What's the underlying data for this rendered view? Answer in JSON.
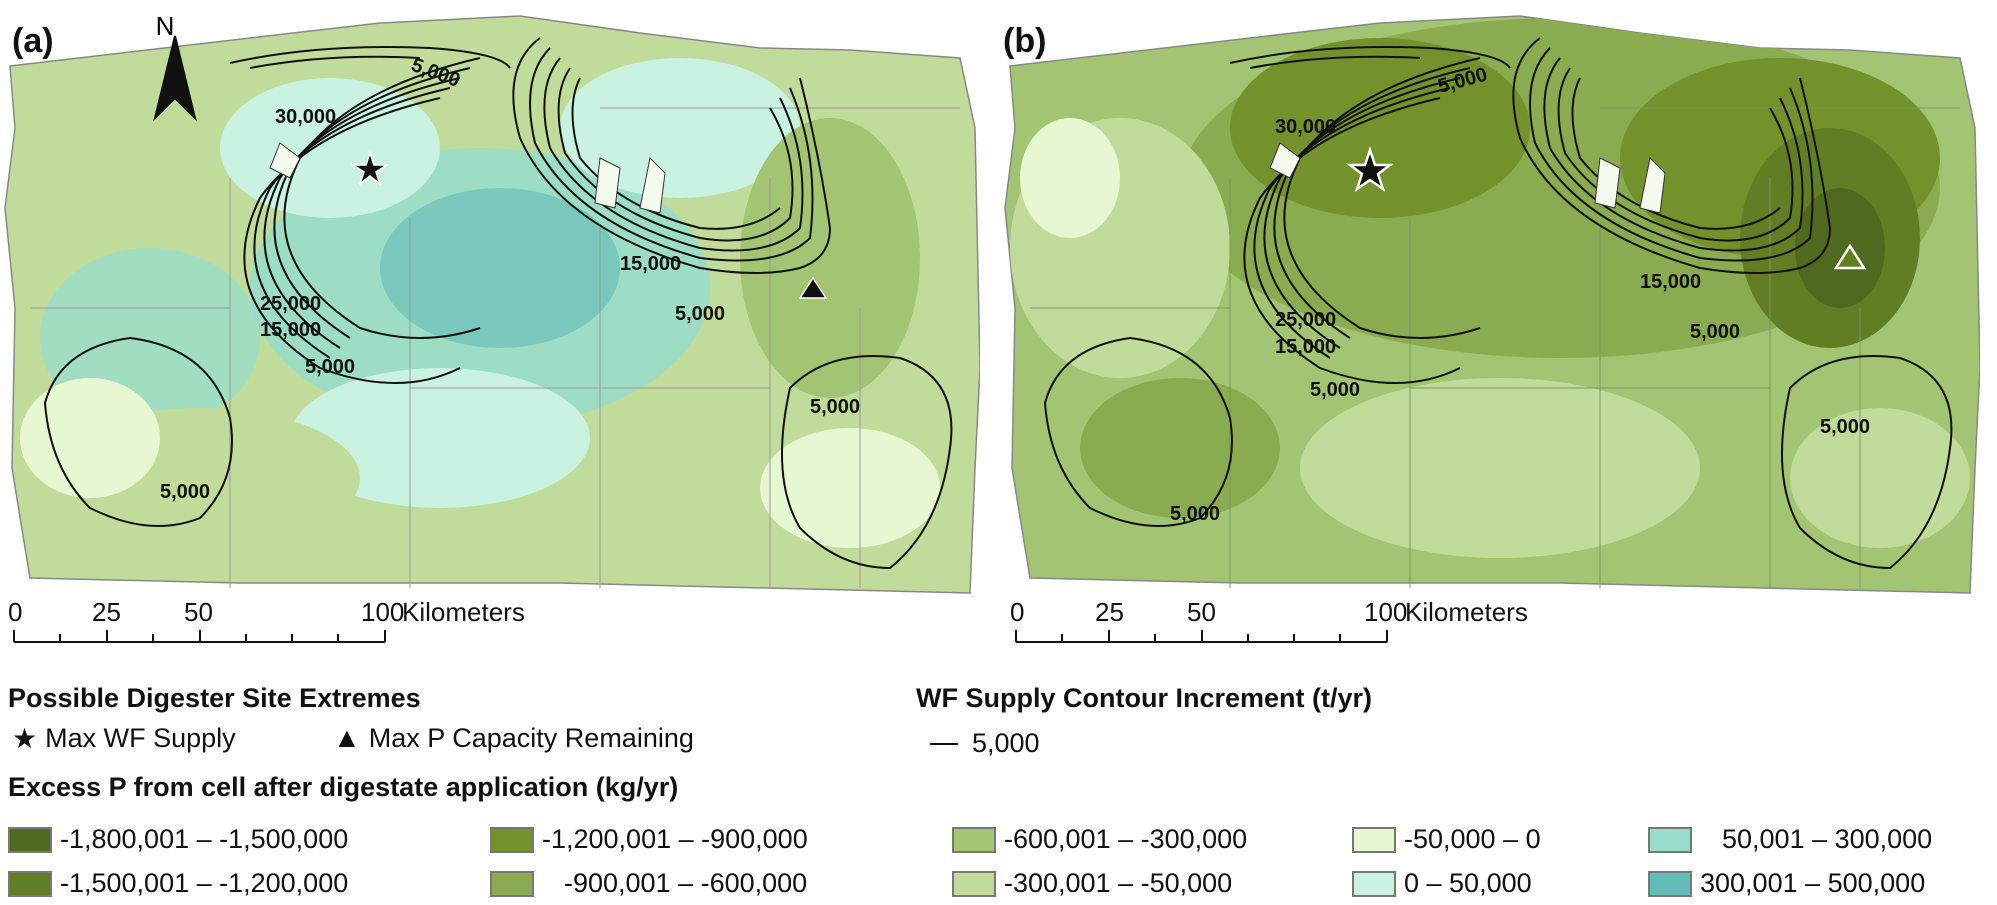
{
  "panels": [
    {
      "label": "(a)",
      "north": "N"
    },
    {
      "label": "(b)"
    }
  ],
  "contour_labels": {
    "a": [
      "5,000",
      "30,000",
      "15,000",
      "5,000",
      "25,000",
      "15,000",
      "5,000",
      "5,000",
      "5,000"
    ],
    "b": [
      "5,000",
      "30,000",
      "15,000",
      "5,000",
      "25,000",
      "15,000",
      "5,000",
      "5,000",
      "5,000"
    ]
  },
  "scale_bar": {
    "ticks": [
      "0",
      "25",
      "50",
      "100"
    ],
    "unit": "Kilometers"
  },
  "legend": {
    "sites_title": "Possible Digester Site Extremes",
    "max_wf": "Max WF Supply",
    "max_p": "Max P Capacity Remaining",
    "contour_title": "WF Supply Contour Increment (t/yr)",
    "contour_value": "5,000",
    "excess_title": "Excess P from cell after digestate application (kg/yr)",
    "classes": [
      {
        "label": "-1,800,001 – -1,500,000",
        "color": "#4f6a1e"
      },
      {
        "label": "-1,500,001 – -1,200,000",
        "color": "#617e25"
      },
      {
        "label": "-1,200,001 – -900,000",
        "color": "#73922c"
      },
      {
        "label": "-900,001 – -600,000",
        "color": "#8aab4f"
      },
      {
        "label": "-600,001 – -300,000",
        "color": "#a3c472"
      },
      {
        "label": "-300,001 – -50,000",
        "color": "#c1dc9a"
      },
      {
        "label": "-50,000 – 0",
        "color": "#e6f7d2"
      },
      {
        "label": "0 – 50,000",
        "color": "#c9f2e1"
      },
      {
        "label": "50,001 – 300,000",
        "color": "#97ddca"
      },
      {
        "label": "300,001 – 500,000",
        "color": "#62bbb9"
      }
    ]
  }
}
